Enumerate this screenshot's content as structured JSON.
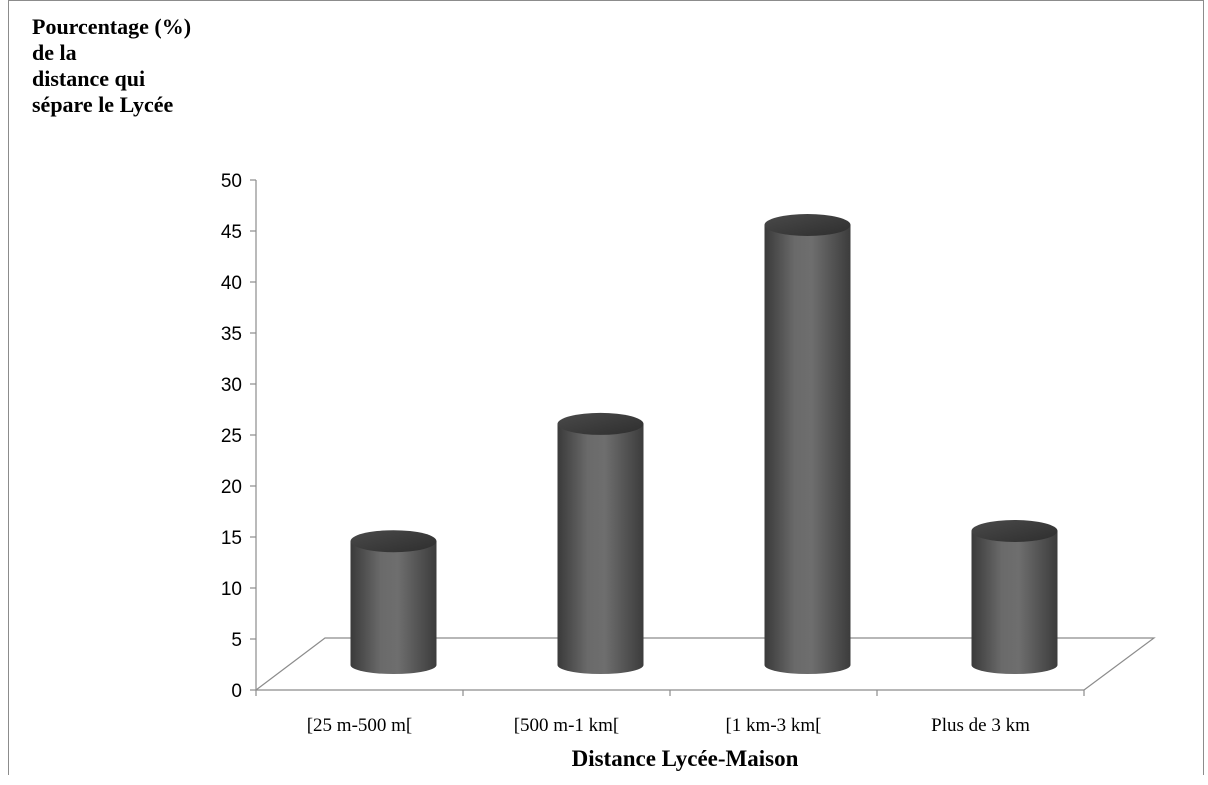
{
  "chart_data": {
    "type": "bar",
    "style": "3d-cylinder",
    "title": "",
    "ylabel_lines": [
      "Pourcentage  (%)",
      "de la",
      "distance qui",
      "sépare le Lycée"
    ],
    "xlabel": "Distance Lycée-Maison",
    "categories": [
      "[25 m-500 m[",
      "[500 m-1 km[",
      "[1 km-3 km[",
      "Plus de 3 km"
    ],
    "values": [
      14,
      25.5,
      45,
      15
    ],
    "ylim": [
      0,
      50
    ],
    "yticks": [
      0,
      5,
      10,
      15,
      20,
      25,
      30,
      35,
      40,
      45,
      50
    ],
    "grid": false,
    "bar_color": "#5a5a5a"
  }
}
